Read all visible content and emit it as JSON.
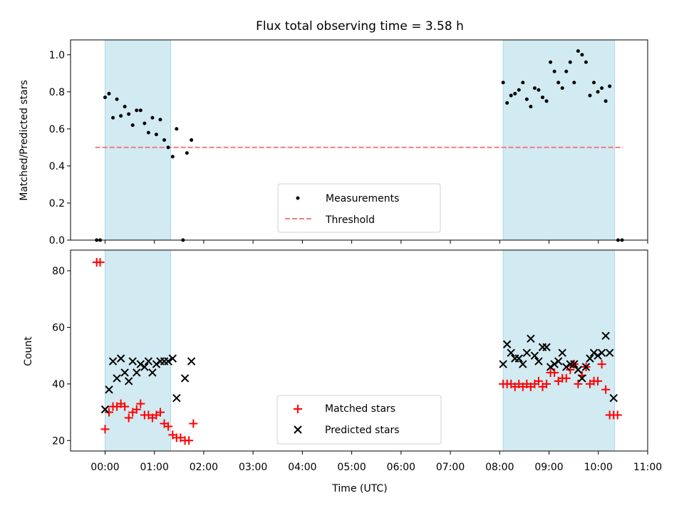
{
  "chart_data": {
    "type": "scatter",
    "title": "Flux total observing time = 3.58 h",
    "xlabel": "Time (UTC)",
    "xlim": [
      -0.7,
      11.0
    ],
    "xtick_values": [
      0,
      1,
      2,
      3,
      4,
      5,
      6,
      7,
      8,
      9,
      10,
      11
    ],
    "xtick_labels": [
      "00:00",
      "01:00",
      "02:00",
      "03:00",
      "04:00",
      "05:00",
      "06:00",
      "07:00",
      "08:00",
      "09:00",
      "10:00",
      "11:00"
    ],
    "colors": {
      "shade": "#add8e6",
      "measurements": "#000000",
      "threshold": "#f08080",
      "matched": "#ff0000",
      "predicted": "#000000"
    },
    "shaded_intervals": [
      [
        0.0,
        1.33
      ],
      [
        8.07,
        10.33
      ]
    ],
    "top": {
      "ylabel": "Matched/Predicted stars",
      "ylim": [
        0,
        1.08
      ],
      "yticks": [
        0.0,
        0.2,
        0.4,
        0.6,
        0.8,
        1.0
      ],
      "ytick_labels": [
        "0.0",
        "0.2",
        "0.4",
        "0.6",
        "0.8",
        "1.0"
      ],
      "threshold": {
        "value": 0.5,
        "x_range": [
          -0.2,
          10.5
        ]
      },
      "legend": {
        "position": "lower-center",
        "measurements_label": "Measurements",
        "threshold_label": "Threshold"
      },
      "measurements": [
        [
          -0.17,
          0.0
        ],
        [
          -0.1,
          0.0
        ],
        [
          0.0,
          0.77
        ],
        [
          0.08,
          0.79
        ],
        [
          0.16,
          0.66
        ],
        [
          0.24,
          0.76
        ],
        [
          0.32,
          0.67
        ],
        [
          0.4,
          0.72
        ],
        [
          0.48,
          0.68
        ],
        [
          0.56,
          0.62
        ],
        [
          0.64,
          0.7
        ],
        [
          0.72,
          0.7
        ],
        [
          0.8,
          0.63
        ],
        [
          0.88,
          0.58
        ],
        [
          0.96,
          0.66
        ],
        [
          1.04,
          0.57
        ],
        [
          1.12,
          0.65
        ],
        [
          1.2,
          0.54
        ],
        [
          1.28,
          0.5
        ],
        [
          1.37,
          0.45
        ],
        [
          1.45,
          0.6
        ],
        [
          1.58,
          0.0
        ],
        [
          1.66,
          0.47
        ],
        [
          1.75,
          0.54
        ],
        [
          8.07,
          0.85
        ],
        [
          8.15,
          0.74
        ],
        [
          8.23,
          0.78
        ],
        [
          8.31,
          0.79
        ],
        [
          8.39,
          0.81
        ],
        [
          8.47,
          0.85
        ],
        [
          8.55,
          0.76
        ],
        [
          8.63,
          0.72
        ],
        [
          8.71,
          0.82
        ],
        [
          8.79,
          0.81
        ],
        [
          8.87,
          0.77
        ],
        [
          8.95,
          0.75
        ],
        [
          9.03,
          0.96
        ],
        [
          9.11,
          0.91
        ],
        [
          9.19,
          0.85
        ],
        [
          9.27,
          0.82
        ],
        [
          9.35,
          0.91
        ],
        [
          9.43,
          0.96
        ],
        [
          9.51,
          0.85
        ],
        [
          9.59,
          1.02
        ],
        [
          9.67,
          1.0
        ],
        [
          9.75,
          0.96
        ],
        [
          9.83,
          0.78
        ],
        [
          9.91,
          0.85
        ],
        [
          9.99,
          0.8
        ],
        [
          10.07,
          0.82
        ],
        [
          10.15,
          0.75
        ],
        [
          10.23,
          0.83
        ],
        [
          10.4,
          0.0
        ],
        [
          10.48,
          0.0
        ]
      ]
    },
    "bottom": {
      "ylabel": "Count",
      "ylim": [
        16.3,
        87.3
      ],
      "yticks": [
        20,
        40,
        60,
        80
      ],
      "ytick_labels": [
        "20",
        "40",
        "60",
        "80"
      ],
      "legend": {
        "position": "lower-center",
        "matched_label": "Matched stars",
        "predicted_label": "Predicted stars"
      },
      "matched": [
        [
          -0.17,
          83
        ],
        [
          -0.1,
          83
        ],
        [
          0.0,
          24
        ],
        [
          0.08,
          30
        ],
        [
          0.16,
          32
        ],
        [
          0.24,
          32
        ],
        [
          0.32,
          33
        ],
        [
          0.4,
          32
        ],
        [
          0.48,
          28
        ],
        [
          0.56,
          30
        ],
        [
          0.64,
          31
        ],
        [
          0.72,
          33
        ],
        [
          0.8,
          29
        ],
        [
          0.88,
          29
        ],
        [
          0.96,
          28
        ],
        [
          1.04,
          29
        ],
        [
          1.12,
          30
        ],
        [
          1.2,
          26
        ],
        [
          1.28,
          25
        ],
        [
          1.37,
          22
        ],
        [
          1.45,
          21
        ],
        [
          1.53,
          21
        ],
        [
          1.62,
          20
        ],
        [
          1.7,
          20
        ],
        [
          1.79,
          26
        ],
        [
          8.07,
          40
        ],
        [
          8.15,
          40
        ],
        [
          8.23,
          40
        ],
        [
          8.31,
          39
        ],
        [
          8.39,
          40
        ],
        [
          8.47,
          39
        ],
        [
          8.55,
          40
        ],
        [
          8.63,
          39
        ],
        [
          8.71,
          40
        ],
        [
          8.79,
          41
        ],
        [
          8.87,
          39
        ],
        [
          8.95,
          40
        ],
        [
          9.03,
          44
        ],
        [
          9.11,
          44
        ],
        [
          9.19,
          41
        ],
        [
          9.27,
          42
        ],
        [
          9.35,
          42
        ],
        [
          9.43,
          45
        ],
        [
          9.51,
          47
        ],
        [
          9.59,
          40
        ],
        [
          9.67,
          43
        ],
        [
          9.75,
          46
        ],
        [
          9.83,
          40
        ],
        [
          9.91,
          41
        ],
        [
          9.99,
          41
        ],
        [
          10.07,
          47
        ],
        [
          10.15,
          38
        ],
        [
          10.23,
          29
        ],
        [
          10.31,
          29
        ],
        [
          10.39,
          29
        ]
      ],
      "predicted": [
        [
          0.0,
          31
        ],
        [
          0.08,
          38
        ],
        [
          0.16,
          48
        ],
        [
          0.24,
          42
        ],
        [
          0.32,
          49
        ],
        [
          0.4,
          44
        ],
        [
          0.48,
          41
        ],
        [
          0.56,
          48
        ],
        [
          0.64,
          44
        ],
        [
          0.72,
          47
        ],
        [
          0.8,
          46
        ],
        [
          0.88,
          48
        ],
        [
          0.96,
          44
        ],
        [
          1.04,
          47
        ],
        [
          1.12,
          48
        ],
        [
          1.2,
          48
        ],
        [
          1.28,
          48
        ],
        [
          1.37,
          49
        ],
        [
          1.45,
          35
        ],
        [
          1.62,
          42
        ],
        [
          1.75,
          48
        ],
        [
          8.07,
          47
        ],
        [
          8.15,
          54
        ],
        [
          8.23,
          51
        ],
        [
          8.31,
          49
        ],
        [
          8.39,
          49
        ],
        [
          8.47,
          47
        ],
        [
          8.55,
          51
        ],
        [
          8.63,
          56
        ],
        [
          8.71,
          50
        ],
        [
          8.79,
          48
        ],
        [
          8.87,
          53
        ],
        [
          8.95,
          53
        ],
        [
          9.03,
          46
        ],
        [
          9.11,
          47
        ],
        [
          9.19,
          48
        ],
        [
          9.27,
          51
        ],
        [
          9.35,
          46
        ],
        [
          9.43,
          47
        ],
        [
          9.51,
          47
        ],
        [
          9.59,
          45
        ],
        [
          9.67,
          42
        ],
        [
          9.75,
          46
        ],
        [
          9.83,
          49
        ],
        [
          9.91,
          51
        ],
        [
          9.99,
          50
        ],
        [
          10.07,
          51
        ],
        [
          10.15,
          57
        ],
        [
          10.23,
          51
        ],
        [
          10.31,
          35
        ]
      ]
    }
  }
}
